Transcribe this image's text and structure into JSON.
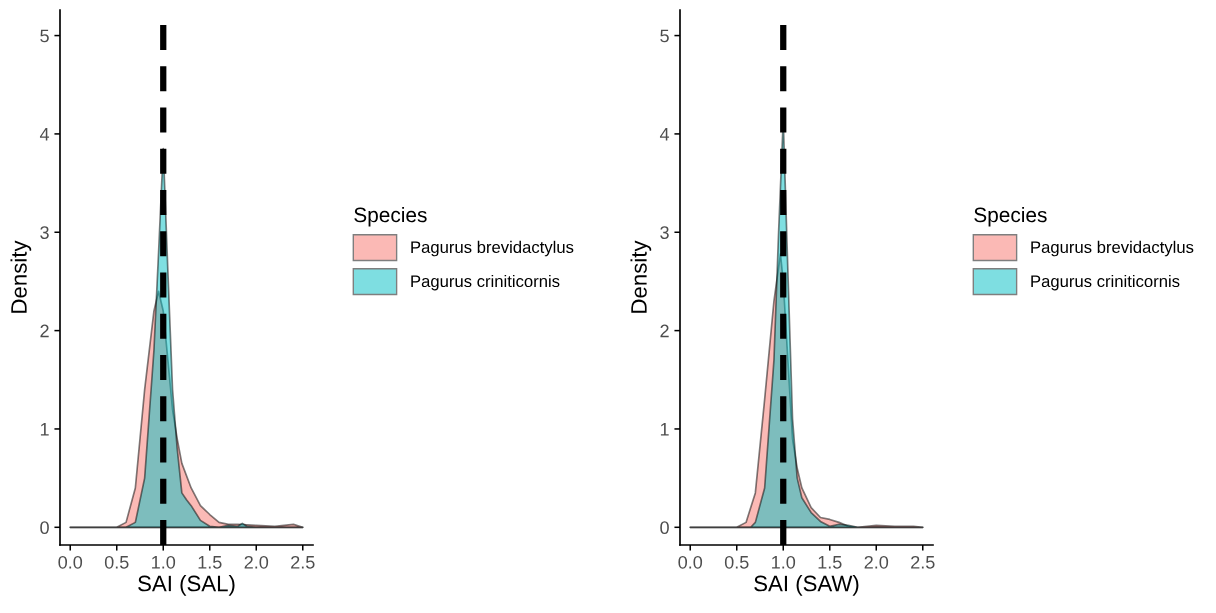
{
  "chart_data": [
    {
      "type": "area",
      "xlabel": "SAI (SAL)",
      "ylabel": "Density",
      "legend_title": "Species",
      "legend": "right",
      "grid": false,
      "xlim": [
        -0.11,
        2.61
      ],
      "ylim": [
        -0.18,
        5.26
      ],
      "xticks": [
        {
          "value": 0,
          "label": "0.0"
        },
        0.5,
        {
          "value": 1,
          "label": "1.0"
        },
        1.5,
        {
          "value": 2,
          "label": "2.0"
        },
        2.5
      ],
      "yticks": [
        0,
        1,
        2,
        3,
        4,
        5
      ],
      "ref_lines": [
        {
          "axis": "x",
          "value": 1,
          "label": null,
          "color": "#000000",
          "line_style": "dashed"
        }
      ],
      "series": [
        {
          "name": "Pagurus brevidactylus",
          "color": "#F8766D",
          "x": [
            0,
            0.5,
            0.6,
            0.7,
            0.8,
            0.9,
            0.95,
            1.0,
            1.05,
            1.1,
            1.15,
            1.2,
            1.3,
            1.4,
            1.5,
            1.6,
            1.7,
            1.8,
            2.0,
            2.2,
            2.4,
            2.5
          ],
          "values": [
            0,
            0,
            0.05,
            0.4,
            1.4,
            2.2,
            2.4,
            2.2,
            1.7,
            1.2,
            0.9,
            0.65,
            0.4,
            0.22,
            0.13,
            0.05,
            0.03,
            0.03,
            0.02,
            0.01,
            0.03,
            0
          ]
        },
        {
          "name": "Pagurus criniticornis",
          "color": "#00BFC4",
          "x": [
            0,
            0.6,
            0.7,
            0.8,
            0.9,
            0.95,
            1.0,
            1.05,
            1.1,
            1.15,
            1.2,
            1.25,
            1.3,
            1.4,
            1.5,
            1.6,
            1.7,
            1.8,
            1.85,
            1.9,
            2.0,
            2.5
          ],
          "values": [
            0,
            0,
            0.05,
            0.5,
            1.8,
            2.8,
            3.85,
            2.6,
            1.4,
            0.8,
            0.35,
            0.28,
            0.22,
            0.07,
            0.01,
            0,
            0.02,
            0.01,
            0.04,
            0.01,
            0,
            0
          ]
        }
      ]
    },
    {
      "type": "area",
      "xlabel": "SAI (SAW)",
      "ylabel": "Density",
      "legend_title": "Species",
      "legend": "right",
      "grid": false,
      "xlim": [
        -0.11,
        2.61
      ],
      "ylim": [
        -0.18,
        5.26
      ],
      "xticks": [
        {
          "value": 0,
          "label": "0.0"
        },
        0.5,
        {
          "value": 1,
          "label": "1.0"
        },
        1.5,
        {
          "value": 2,
          "label": "2.0"
        },
        2.5
      ],
      "yticks": [
        0,
        1,
        2,
        3,
        4,
        5
      ],
      "ref_lines": [
        {
          "axis": "x",
          "value": 1,
          "label": null,
          "color": "#000000",
          "line_style": "dashed"
        }
      ],
      "series": [
        {
          "name": "Pagurus brevidactylus",
          "color": "#F8766D",
          "x": [
            0,
            0.5,
            0.6,
            0.7,
            0.8,
            0.9,
            0.97,
            1.0,
            1.05,
            1.1,
            1.15,
            1.2,
            1.3,
            1.4,
            1.5,
            1.6,
            1.7,
            1.8,
            2.0,
            2.2,
            2.4,
            2.5
          ],
          "values": [
            0,
            0,
            0.05,
            0.35,
            1.3,
            2.3,
            2.78,
            2.5,
            1.7,
            0.9,
            0.6,
            0.4,
            0.2,
            0.1,
            0.08,
            0.05,
            0.01,
            0,
            0.02,
            0.01,
            0.01,
            0
          ]
        },
        {
          "name": "Pagurus criniticornis",
          "color": "#00BFC4",
          "x": [
            0,
            0.65,
            0.7,
            0.8,
            0.9,
            0.95,
            1.0,
            1.05,
            1.1,
            1.15,
            1.2,
            1.3,
            1.4,
            1.5,
            1.6,
            1.7,
            1.8,
            2.5
          ],
          "values": [
            0,
            0,
            0.05,
            0.4,
            1.7,
            3.0,
            4.15,
            2.6,
            1.1,
            0.5,
            0.3,
            0.15,
            0.06,
            0.01,
            0.03,
            0.02,
            0,
            0
          ]
        }
      ]
    }
  ]
}
